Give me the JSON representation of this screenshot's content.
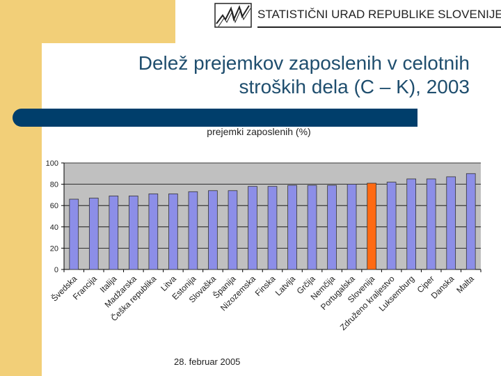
{
  "header": {
    "org_name": "STATISTIČNI URAD REPUBLIKE SLOVENIJE"
  },
  "title_lines": [
    "Delež prejemkov zaposlenih v celotnih",
    "stroških dela (C – K), 2003"
  ],
  "footer": {
    "date": "28. februar 2005"
  },
  "colors": {
    "band": "#f2cf78",
    "title": "#1f4e6e",
    "bar_blue": "#8c8ee8",
    "bar_highlight": "#ff6a13",
    "plot_bg": "#c0c0c0",
    "title_bar": "#003e6b"
  },
  "chart_data": {
    "type": "bar",
    "title": "prejemki zaposlenih (%)",
    "xlabel": "",
    "ylabel": "",
    "ylim": [
      0,
      100
    ],
    "yticks": [
      0,
      20,
      40,
      60,
      80,
      100
    ],
    "grid": true,
    "categories": [
      "Švedska",
      "Francija",
      "Italija",
      "Madžarska",
      "Češka republika",
      "Litva",
      "Estonija",
      "Slovaška",
      "Španija",
      "Nizozemska",
      "Finska",
      "Latvija",
      "Grčija",
      "Nemčija",
      "Portugalska",
      "Slovenija",
      "Združeno kraljestvo",
      "Luksemburg",
      "Ciper",
      "Danska",
      "Malta"
    ],
    "values": [
      66,
      67,
      69,
      69,
      71,
      71,
      73,
      74,
      74,
      78,
      78,
      79,
      79,
      79,
      80,
      81,
      82,
      85,
      85,
      87,
      90
    ],
    "highlight": "Slovenija"
  }
}
